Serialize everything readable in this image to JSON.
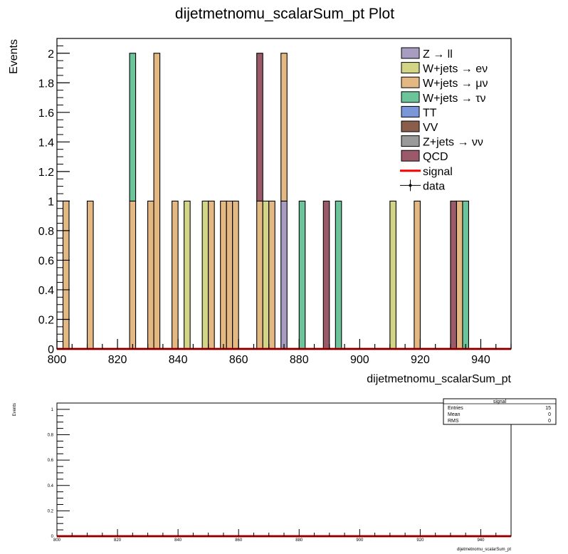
{
  "chart_data": [
    {
      "type": "bar",
      "stacked": true,
      "title": "dijetmetnomu_scalarSum_pt Plot",
      "xlabel": "dijetmetnomu_scalarSum_pt",
      "ylabel": "Events",
      "xlim": [
        800,
        950
      ],
      "ylim": [
        0,
        2.1
      ],
      "bin_width": 2,
      "x_ticks": [
        "800",
        "820",
        "840",
        "860",
        "880",
        "900",
        "920",
        "940"
      ],
      "y_ticks": [
        "0",
        "0.2",
        "0.4",
        "0.6",
        "0.8",
        "1",
        "1.2",
        "1.4",
        "1.6",
        "1.8",
        "2"
      ],
      "grid": false,
      "legend_position": "top-right",
      "legend": [
        {
          "label": "Z → ll",
          "color": "#a89cc0",
          "kind": "box"
        },
        {
          "label": "W+jets → eν",
          "color": "#d2d486",
          "kind": "box"
        },
        {
          "label": "W+jets → μν",
          "color": "#e3b883",
          "kind": "box"
        },
        {
          "label": "W+jets → τν",
          "color": "#6cc49a",
          "kind": "box"
        },
        {
          "label": "TT",
          "color": "#7b97d9",
          "kind": "box"
        },
        {
          "label": "VV",
          "color": "#8b5e4c",
          "kind": "box"
        },
        {
          "label": "Z+jets → νν",
          "color": "#9a9a9a",
          "kind": "box"
        },
        {
          "label": "QCD",
          "color": "#9b5a6a",
          "kind": "box"
        },
        {
          "label": "signal",
          "color": "#ff0000",
          "kind": "line"
        },
        {
          "label": "data",
          "color": "#000000",
          "kind": "marker"
        }
      ],
      "bars": [
        {
          "x": 802,
          "stack": [
            {
              "s": "wmu",
              "v": 1
            }
          ]
        },
        {
          "x": 810,
          "stack": [
            {
              "s": "wmu",
              "v": 1
            }
          ]
        },
        {
          "x": 824,
          "stack": [
            {
              "s": "wmu",
              "v": 1
            },
            {
              "s": "wtau",
              "v": 1
            }
          ]
        },
        {
          "x": 830,
          "stack": [
            {
              "s": "wmu",
              "v": 1
            }
          ]
        },
        {
          "x": 832,
          "stack": [
            {
              "s": "wmu",
              "v": 2
            }
          ]
        },
        {
          "x": 838,
          "stack": [
            {
              "s": "wmu",
              "v": 1
            }
          ]
        },
        {
          "x": 842,
          "stack": [
            {
              "s": "we",
              "v": 1
            }
          ]
        },
        {
          "x": 848,
          "stack": [
            {
              "s": "we",
              "v": 1
            }
          ]
        },
        {
          "x": 850,
          "stack": [
            {
              "s": "wmu",
              "v": 1
            }
          ]
        },
        {
          "x": 854,
          "stack": [
            {
              "s": "wmu",
              "v": 1
            }
          ]
        },
        {
          "x": 856,
          "stack": [
            {
              "s": "wmu",
              "v": 1
            }
          ]
        },
        {
          "x": 858,
          "stack": [
            {
              "s": "wmu",
              "v": 1
            }
          ]
        },
        {
          "x": 866,
          "stack": [
            {
              "s": "wmu",
              "v": 1
            },
            {
              "s": "qcd",
              "v": 1
            }
          ]
        },
        {
          "x": 868,
          "stack": [
            {
              "s": "we",
              "v": 1
            }
          ]
        },
        {
          "x": 870,
          "stack": [
            {
              "s": "wmu",
              "v": 1
            }
          ]
        },
        {
          "x": 874,
          "stack": [
            {
              "s": "zll",
              "v": 1
            },
            {
              "s": "wmu",
              "v": 1
            }
          ]
        },
        {
          "x": 880,
          "stack": [
            {
              "s": "wtau",
              "v": 1
            }
          ]
        },
        {
          "x": 888,
          "stack": [
            {
              "s": "qcd",
              "v": 1
            }
          ]
        },
        {
          "x": 892,
          "stack": [
            {
              "s": "wtau",
              "v": 1
            }
          ]
        },
        {
          "x": 910,
          "stack": [
            {
              "s": "we",
              "v": 1
            }
          ]
        },
        {
          "x": 918,
          "stack": [
            {
              "s": "wmu",
              "v": 1
            }
          ]
        },
        {
          "x": 930,
          "stack": [
            {
              "s": "qcd",
              "v": 1
            }
          ]
        },
        {
          "x": 932,
          "stack": [
            {
              "s": "wmu",
              "v": 1
            }
          ]
        },
        {
          "x": 934,
          "stack": [
            {
              "s": "wtau",
              "v": 1
            }
          ]
        }
      ],
      "series_colors": {
        "zll": "#a89cc0",
        "we": "#d2d486",
        "wmu": "#e3b883",
        "wtau": "#6cc49a",
        "qcd": "#9b5a6a"
      },
      "signal": {
        "x": [
          800,
          950
        ],
        "y": [
          0,
          0
        ],
        "color": "#ff0000"
      }
    },
    {
      "type": "line",
      "xlabel": "dijetmetnomu_scalarSum_pt",
      "ylabel": "Events",
      "xlim": [
        800,
        950
      ],
      "ylim": [
        0,
        1.05
      ],
      "x_ticks": [
        "800",
        "820",
        "840",
        "860",
        "880",
        "900",
        "920",
        "940"
      ],
      "y_ticks": [
        "0",
        "0.2",
        "0.4",
        "0.6",
        "0.8",
        "1"
      ],
      "signal": {
        "x": [
          800,
          950
        ],
        "y": [
          0,
          0
        ],
        "color": "#ff0000"
      },
      "stats_box": {
        "title": "signal",
        "rows": [
          {
            "label": "Entries",
            "value": "15"
          },
          {
            "label": "Mean",
            "value": "0"
          },
          {
            "label": "RMS",
            "value": "0"
          }
        ]
      }
    }
  ]
}
